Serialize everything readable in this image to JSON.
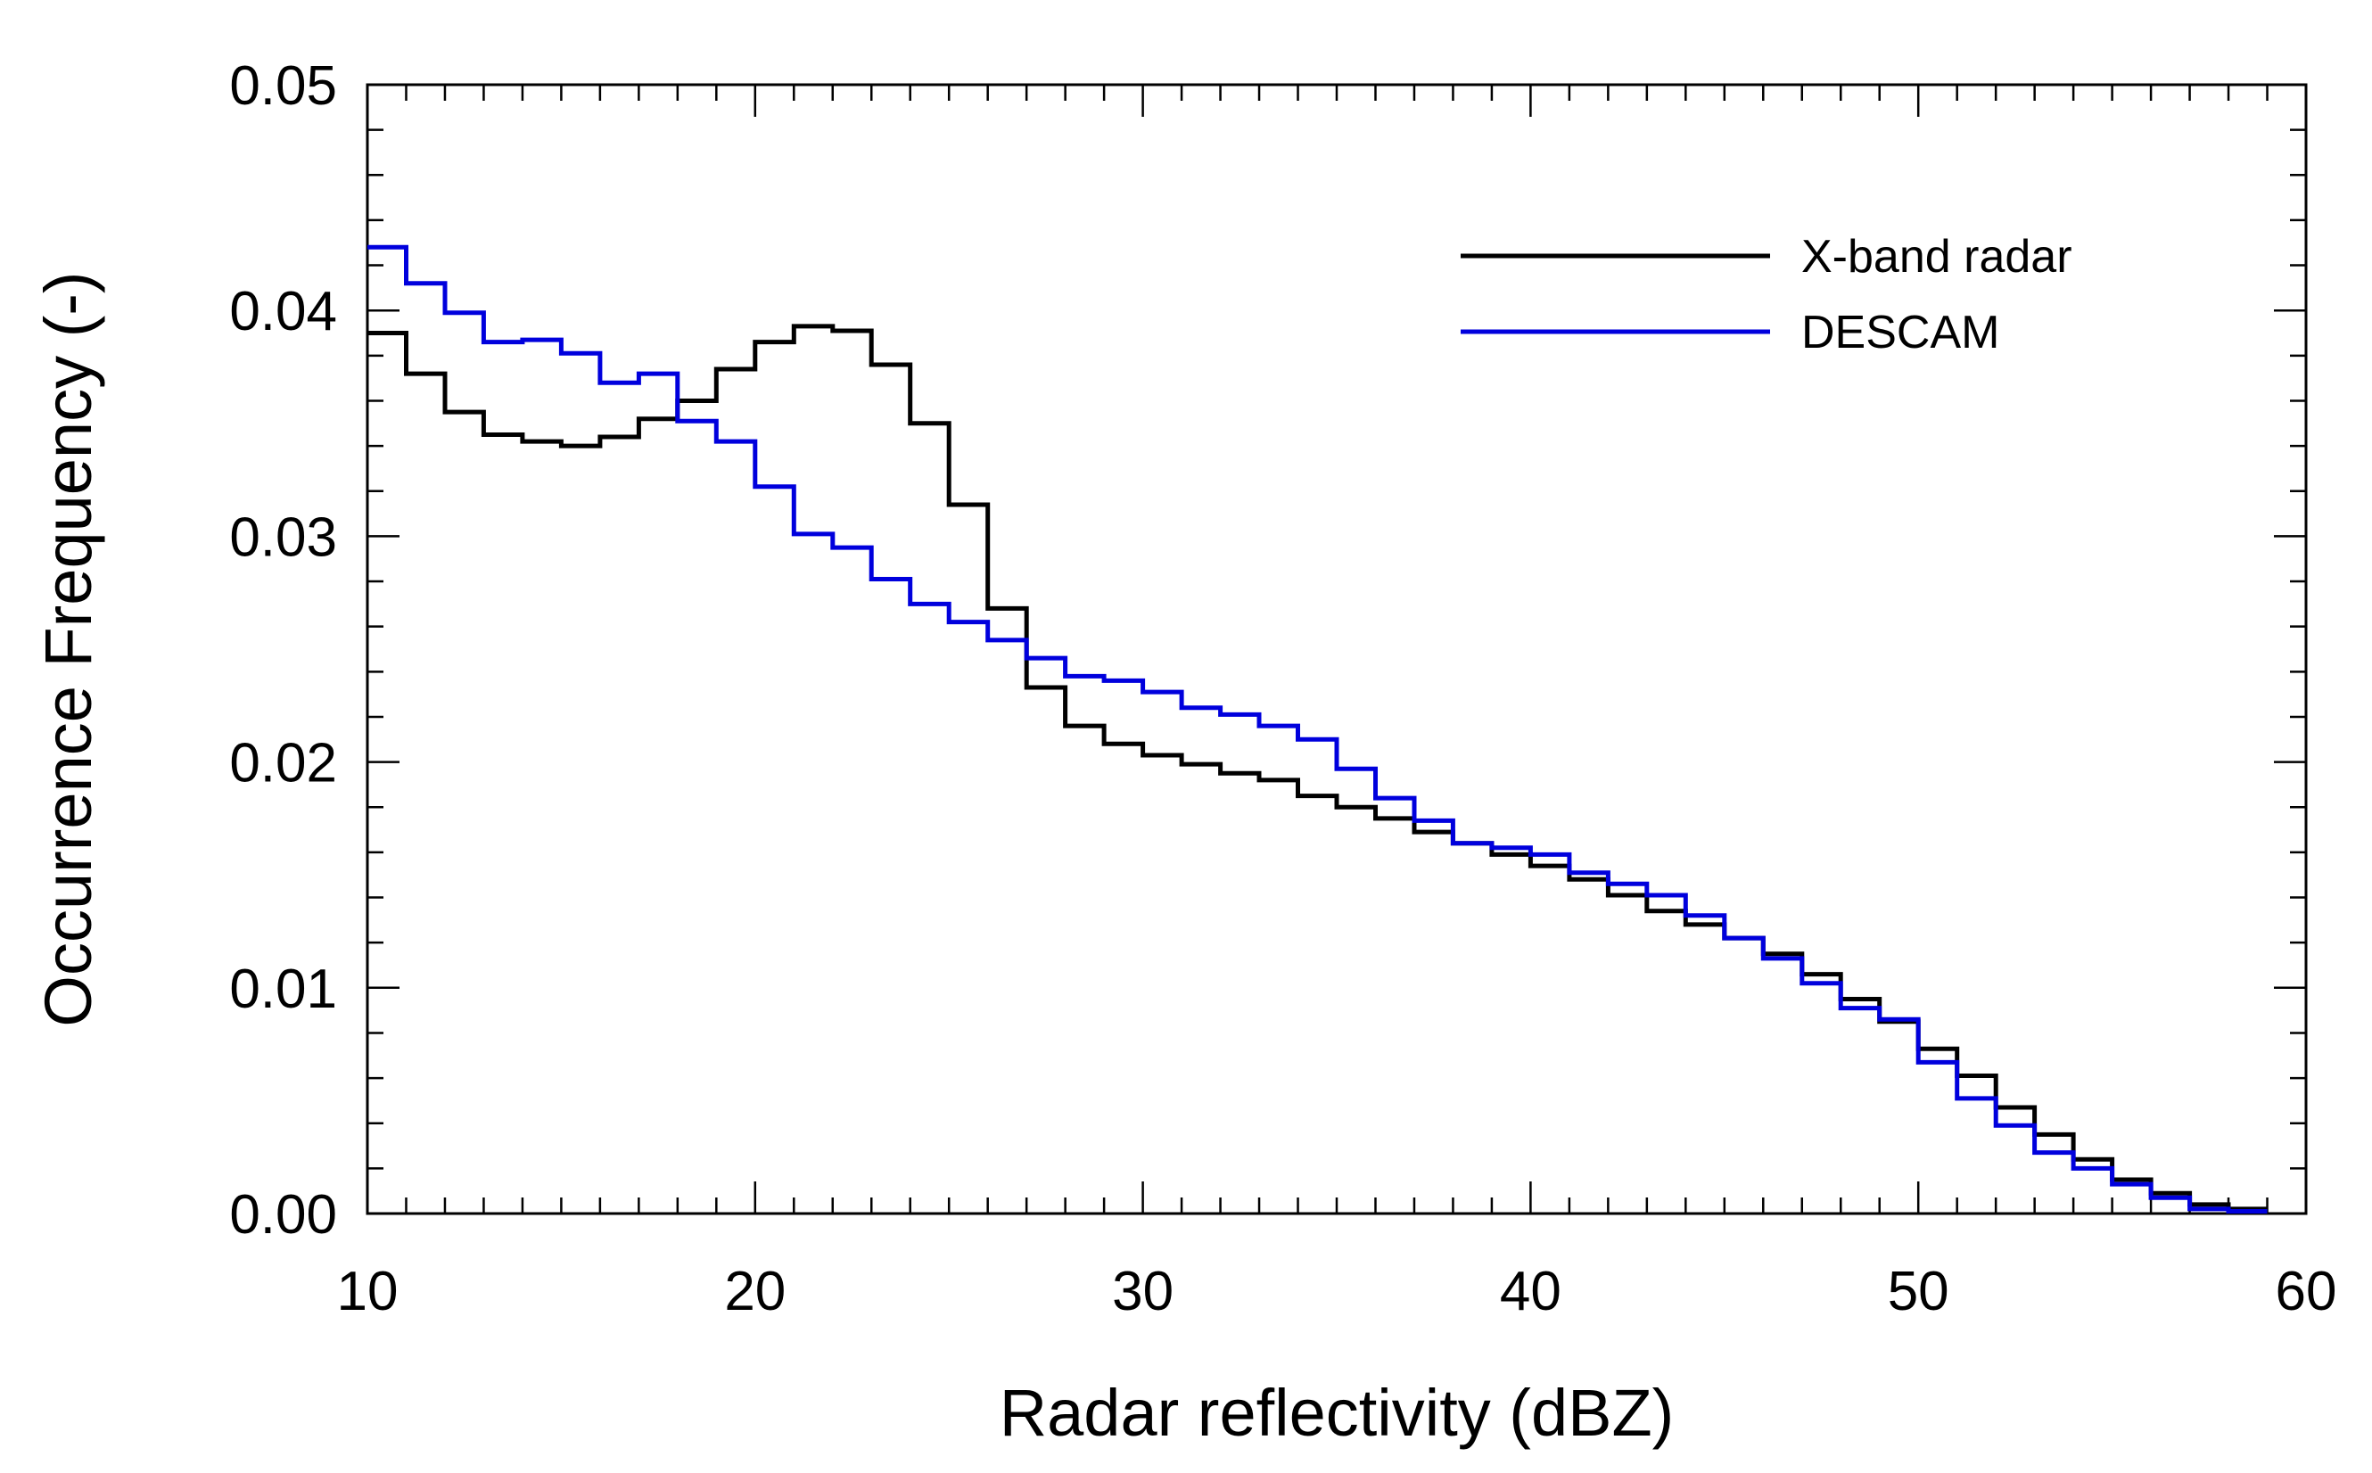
{
  "chart_data": {
    "type": "line",
    "style": "step",
    "title": "",
    "xlabel": "Radar reflectivity (dBZ)",
    "ylabel": "Occurrence Frequency (-)",
    "xlim": [
      10,
      60
    ],
    "ylim": [
      0,
      0.05
    ],
    "xticks": [
      10,
      20,
      30,
      40,
      50,
      60
    ],
    "yticks": [
      0.0,
      0.01,
      0.02,
      0.03,
      0.04,
      0.05
    ],
    "xtick_labels": [
      "10",
      "20",
      "30",
      "40",
      "50",
      "60"
    ],
    "ytick_labels": [
      "0.00",
      "0.01",
      "0.02",
      "0.03",
      "0.04",
      "0.05"
    ],
    "grid": false,
    "legend_position": "top-right",
    "bin_edges": [
      10,
      11,
      12,
      13,
      14,
      15,
      16,
      17,
      18,
      19,
      20,
      21,
      22,
      23,
      24,
      25,
      26,
      27,
      28,
      29,
      30,
      31,
      32,
      33,
      34,
      35,
      36,
      37,
      38,
      39,
      40,
      41,
      42,
      43,
      44,
      45,
      46,
      47,
      48,
      49,
      50,
      51,
      52,
      53,
      54,
      55,
      56,
      57,
      58,
      59
    ],
    "series": [
      {
        "name": "X-band radar",
        "color": "#000000",
        "values": [
          0.039,
          0.0372,
          0.0355,
          0.0345,
          0.0342,
          0.034,
          0.0344,
          0.0352,
          0.036,
          0.0374,
          0.0386,
          0.0393,
          0.0391,
          0.0376,
          0.035,
          0.0314,
          0.0268,
          0.0233,
          0.0216,
          0.0208,
          0.0203,
          0.0199,
          0.0195,
          0.0192,
          0.0185,
          0.018,
          0.0175,
          0.0169,
          0.0164,
          0.0159,
          0.0154,
          0.0148,
          0.0141,
          0.0134,
          0.0128,
          0.0122,
          0.0115,
          0.0106,
          0.0095,
          0.0085,
          0.0073,
          0.0061,
          0.0047,
          0.0035,
          0.0024,
          0.0015,
          0.0009,
          0.0004,
          0.0002
        ]
      },
      {
        "name": "DESCAM",
        "color": "#0000dd",
        "values": [
          0.0428,
          0.0412,
          0.0399,
          0.0386,
          0.0387,
          0.0381,
          0.0368,
          0.0372,
          0.0351,
          0.0342,
          0.0322,
          0.0301,
          0.0295,
          0.0281,
          0.027,
          0.0262,
          0.0254,
          0.0246,
          0.0238,
          0.0236,
          0.0231,
          0.0224,
          0.0221,
          0.0216,
          0.021,
          0.0197,
          0.0184,
          0.0174,
          0.0164,
          0.0162,
          0.0159,
          0.0151,
          0.0146,
          0.0141,
          0.0132,
          0.0122,
          0.0113,
          0.0102,
          0.0091,
          0.0086,
          0.0067,
          0.0051,
          0.0039,
          0.0027,
          0.002,
          0.0013,
          0.0007,
          0.0002,
          0.0001
        ]
      }
    ]
  }
}
